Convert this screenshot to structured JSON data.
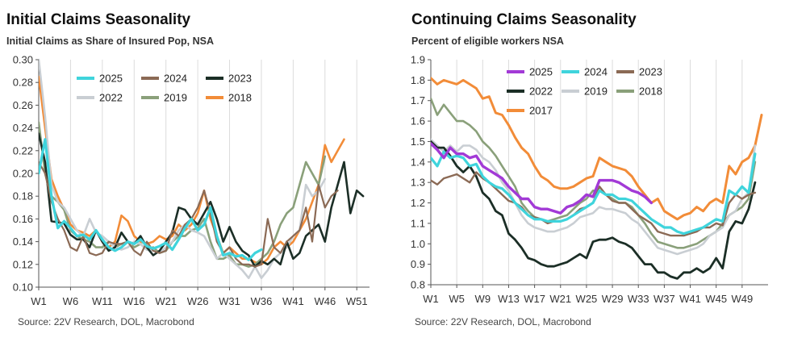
{
  "charts": {
    "left": {
      "title": "Initial Claims Seasonality",
      "subtitle": "Initial Claims as Share of Insured Pop, NSA",
      "source": "Source: 22V Research, DOL, Macrobond"
    },
    "right": {
      "title": "Continuing Claims Seasonality",
      "subtitle": "Percent of eligible workers NSA",
      "source": "Source: 22V Research, DOL, Macrobond"
    }
  },
  "chart_data": [
    {
      "type": "line",
      "title": "Initial Claims Seasonality",
      "subtitle": "Initial Claims as Share of Insured Pop, NSA",
      "xlabel": "",
      "ylabel": "",
      "ylim": [
        0.1,
        0.3
      ],
      "yticks": [
        "0.10",
        "0.12",
        "0.14",
        "0.16",
        "0.18",
        "0.20",
        "0.22",
        "0.24",
        "0.26",
        "0.28",
        "0.30"
      ],
      "x_tick_labels": [
        "W1",
        "W6",
        "W11",
        "W16",
        "W21",
        "W26",
        "W31",
        "W36",
        "W41",
        "W46",
        "W51"
      ],
      "x_tick_weeks": [
        1,
        6,
        11,
        16,
        21,
        26,
        31,
        36,
        41,
        46,
        51
      ],
      "xlim": [
        1,
        53
      ],
      "grid": "vertical",
      "legend": "top-left",
      "series": [
        {
          "name": "2025",
          "color": "#3fd4dc",
          "width": 3.2,
          "start": 1,
          "values": [
            0.2,
            0.23,
            0.18,
            0.152,
            0.158,
            0.152,
            0.145,
            0.146,
            0.142,
            0.15,
            0.142,
            0.135,
            0.132,
            0.135,
            0.14,
            0.138,
            0.142,
            0.136,
            0.134,
            0.136,
            0.139,
            0.133,
            0.142,
            0.152,
            0.16,
            0.15,
            0.155,
            0.17,
            0.145,
            0.128,
            0.13,
            0.127,
            0.128,
            0.124,
            0.13,
            0.133
          ]
        },
        {
          "name": "2024",
          "color": "#8b6a55",
          "width": 2.2,
          "start": 1,
          "values": [
            0.21,
            0.2,
            0.175,
            0.16,
            0.15,
            0.135,
            0.132,
            0.145,
            0.13,
            0.128,
            0.13,
            0.14,
            0.138,
            0.138,
            0.14,
            0.132,
            0.128,
            0.14,
            0.132,
            0.13,
            0.132,
            0.15,
            0.145,
            0.155,
            0.16,
            0.17,
            0.185,
            0.165,
            0.14,
            0.13,
            0.135,
            0.125,
            0.12,
            0.12,
            0.118,
            0.12,
            0.16,
            0.135,
            0.13,
            0.14,
            0.145,
            0.15,
            0.17,
            0.14,
            0.19,
            0.17,
            0.18,
            0.185
          ]
        },
        {
          "name": "2023",
          "color": "#1b2e26",
          "width": 2.6,
          "start": 1,
          "values": [
            0.235,
            0.21,
            0.158,
            0.157,
            0.156,
            0.146,
            0.142,
            0.142,
            0.135,
            0.15,
            0.14,
            0.132,
            0.135,
            0.148,
            0.14,
            0.138,
            0.145,
            0.135,
            0.128,
            0.132,
            0.14,
            0.148,
            0.17,
            0.168,
            0.16,
            0.155,
            0.165,
            0.175,
            0.16,
            0.14,
            0.153,
            0.14,
            0.132,
            0.128,
            0.118,
            0.123,
            0.12,
            0.125,
            0.12,
            0.14,
            0.125,
            0.13,
            0.145,
            0.15,
            0.155,
            0.14,
            0.17,
            0.19,
            0.21,
            0.165,
            0.185,
            0.18
          ]
        },
        {
          "name": "2022",
          "color": "#c9ced3",
          "width": 2.6,
          "start": 1,
          "values": [
            0.3,
            0.25,
            0.19,
            0.175,
            0.17,
            0.16,
            0.15,
            0.145,
            0.16,
            0.148,
            0.145,
            0.14,
            0.135,
            0.133,
            0.135,
            0.14,
            0.138,
            0.133,
            0.132,
            0.13,
            0.135,
            0.14,
            0.15,
            0.155,
            0.15,
            0.148,
            0.145,
            0.135,
            0.125,
            0.13,
            0.125,
            0.12,
            0.115,
            0.108,
            0.118,
            0.108,
            0.115,
            0.125,
            0.13,
            0.135,
            0.145,
            0.15,
            0.19,
            0.18,
            0.185,
            0.195
          ]
        },
        {
          "name": "2019",
          "color": "#8aa07a",
          "width": 2.6,
          "start": 1,
          "values": [
            0.245,
            0.2,
            0.18,
            0.175,
            0.168,
            0.15,
            0.145,
            0.142,
            0.14,
            0.135,
            0.135,
            0.14,
            0.135,
            0.138,
            0.14,
            0.135,
            0.138,
            0.133,
            0.135,
            0.13,
            0.132,
            0.14,
            0.145,
            0.145,
            0.15,
            0.152,
            0.16,
            0.14,
            0.125,
            0.125,
            0.128,
            0.12,
            0.12,
            0.118,
            0.12,
            0.125,
            0.13,
            0.14,
            0.155,
            0.165,
            0.17,
            0.19,
            0.21,
            0.2,
            0.19,
            0.215
          ]
        },
        {
          "name": "2018",
          "color": "#f28c38",
          "width": 2.6,
          "start": 1,
          "values": [
            0.285,
            0.24,
            0.195,
            0.18,
            0.168,
            0.155,
            0.15,
            0.148,
            0.145,
            0.15,
            0.14,
            0.135,
            0.14,
            0.163,
            0.158,
            0.145,
            0.14,
            0.138,
            0.14,
            0.145,
            0.142,
            0.145,
            0.155,
            0.15,
            0.155,
            0.165,
            0.185,
            0.16,
            0.145,
            0.13,
            0.135,
            0.13,
            0.125,
            0.125,
            0.122,
            0.12,
            0.125,
            0.135,
            0.14,
            0.135,
            0.14,
            0.15,
            0.16,
            0.175,
            0.19,
            0.225,
            0.21,
            0.22,
            0.23
          ]
        }
      ]
    },
    {
      "type": "line",
      "title": "Continuing Claims Seasonality",
      "subtitle": "Percent of eligible workers NSA",
      "xlabel": "",
      "ylabel": "",
      "ylim": [
        0.8,
        1.9
      ],
      "yticks": [
        "0.8",
        "0.9",
        "1.0",
        "1.1",
        "1.2",
        "1.3",
        "1.4",
        "1.5",
        "1.6",
        "1.7",
        "1.8",
        "1.9"
      ],
      "x_tick_labels": [
        "W1",
        "W5",
        "W9",
        "W13",
        "W17",
        "W21",
        "W25",
        "W29",
        "W33",
        "W37",
        "W41",
        "W45",
        "W49"
      ],
      "x_tick_weeks": [
        1,
        5,
        9,
        13,
        17,
        21,
        25,
        29,
        33,
        37,
        41,
        45,
        49
      ],
      "xlim": [
        1,
        53
      ],
      "grid": "vertical",
      "legend": "top-right",
      "series": [
        {
          "name": "2025",
          "color": "#a23ad6",
          "width": 3.4,
          "start": 1,
          "values": [
            1.49,
            1.46,
            1.42,
            1.47,
            1.44,
            1.44,
            1.42,
            1.43,
            1.38,
            1.36,
            1.34,
            1.32,
            1.28,
            1.25,
            1.22,
            1.22,
            1.18,
            1.17,
            1.17,
            1.16,
            1.15,
            1.18,
            1.19,
            1.21,
            1.24,
            1.23,
            1.31,
            1.31,
            1.31,
            1.3,
            1.28,
            1.26,
            1.25,
            1.23,
            1.2
          ]
        },
        {
          "name": "2024",
          "color": "#3fd4dc",
          "width": 3.2,
          "start": 1,
          "values": [
            1.42,
            1.38,
            1.45,
            1.42,
            1.43,
            1.42,
            1.38,
            1.39,
            1.33,
            1.3,
            1.28,
            1.27,
            1.24,
            1.2,
            1.17,
            1.14,
            1.12,
            1.12,
            1.11,
            1.11,
            1.11,
            1.12,
            1.14,
            1.16,
            1.18,
            1.2,
            1.26,
            1.24,
            1.24,
            1.22,
            1.22,
            1.21,
            1.18,
            1.15,
            1.12,
            1.1,
            1.08,
            1.08,
            1.06,
            1.05,
            1.06,
            1.07,
            1.08,
            1.1,
            1.12,
            1.11,
            1.26,
            1.24,
            1.28,
            1.25,
            1.44
          ]
        },
        {
          "name": "2023",
          "color": "#8b6a55",
          "width": 2.4,
          "start": 1,
          "values": [
            1.31,
            1.29,
            1.32,
            1.33,
            1.34,
            1.32,
            1.3,
            1.35,
            1.32,
            1.3,
            1.27,
            1.24,
            1.21,
            1.2,
            1.18,
            1.14,
            1.13,
            1.12,
            1.1,
            1.11,
            1.11,
            1.12,
            1.14,
            1.17,
            1.18,
            1.2,
            1.28,
            1.24,
            1.21,
            1.2,
            1.2,
            1.17,
            1.14,
            1.12,
            1.1,
            1.06,
            1.05,
            1.04,
            1.04,
            1.04,
            1.05,
            1.06,
            1.08,
            1.08,
            1.1,
            1.09,
            1.2,
            1.24,
            1.22,
            1.24,
            1.25
          ]
        },
        {
          "name": "2022",
          "color": "#1b2e26",
          "width": 2.8,
          "start": 1,
          "values": [
            1.5,
            1.47,
            1.47,
            1.43,
            1.38,
            1.35,
            1.38,
            1.33,
            1.25,
            1.22,
            1.16,
            1.14,
            1.05,
            1.02,
            0.98,
            0.93,
            0.92,
            0.9,
            0.89,
            0.89,
            0.9,
            0.91,
            0.93,
            0.95,
            0.93,
            1.01,
            1.02,
            1.02,
            1.03,
            1.01,
            1.0,
            0.98,
            0.94,
            0.9,
            0.9,
            0.86,
            0.86,
            0.84,
            0.83,
            0.86,
            0.86,
            0.88,
            0.86,
            0.88,
            0.93,
            0.88,
            1.06,
            1.11,
            1.1,
            1.17,
            1.3
          ]
        },
        {
          "name": "2019",
          "color": "#c9ced3",
          "width": 2.6,
          "start": 1,
          "values": [
            1.51,
            1.48,
            1.45,
            1.48,
            1.45,
            1.48,
            1.48,
            1.46,
            1.42,
            1.4,
            1.36,
            1.3,
            1.26,
            1.2,
            1.14,
            1.1,
            1.08,
            1.07,
            1.06,
            1.06,
            1.07,
            1.08,
            1.1,
            1.13,
            1.14,
            1.15,
            1.18,
            1.17,
            1.17,
            1.16,
            1.15,
            1.12,
            1.1,
            1.06,
            1.02,
            0.98,
            0.97,
            0.96,
            0.95,
            0.96,
            0.97,
            0.98,
            1.0,
            1.04,
            1.06,
            1.08,
            1.14,
            1.16,
            1.22,
            1.25,
            1.48
          ]
        },
        {
          "name": "2018",
          "color": "#8aa07a",
          "width": 2.6,
          "start": 1,
          "values": [
            1.71,
            1.63,
            1.68,
            1.64,
            1.6,
            1.6,
            1.58,
            1.55,
            1.5,
            1.47,
            1.43,
            1.38,
            1.33,
            1.28,
            1.2,
            1.16,
            1.13,
            1.12,
            1.11,
            1.12,
            1.13,
            1.14,
            1.17,
            1.2,
            1.22,
            1.26,
            1.26,
            1.24,
            1.22,
            1.2,
            1.2,
            1.18,
            1.14,
            1.1,
            1.05,
            1.01,
            1.0,
            0.99,
            0.98,
            0.98,
            0.99,
            1.0,
            1.02,
            1.04,
            1.06,
            1.1,
            1.14,
            1.16,
            1.18,
            1.22,
            1.4
          ]
        },
        {
          "name": "2017",
          "color": "#f28c38",
          "width": 3.0,
          "start": 1,
          "values": [
            1.81,
            1.78,
            1.8,
            1.79,
            1.78,
            1.8,
            1.78,
            1.76,
            1.71,
            1.72,
            1.64,
            1.63,
            1.58,
            1.52,
            1.47,
            1.44,
            1.38,
            1.33,
            1.31,
            1.28,
            1.27,
            1.27,
            1.28,
            1.3,
            1.32,
            1.33,
            1.42,
            1.4,
            1.38,
            1.37,
            1.36,
            1.33,
            1.28,
            1.24,
            1.2,
            1.22,
            1.16,
            1.14,
            1.12,
            1.14,
            1.15,
            1.18,
            1.16,
            1.2,
            1.22,
            1.2,
            1.38,
            1.34,
            1.4,
            1.42,
            1.48,
            1.63
          ]
        }
      ]
    }
  ]
}
